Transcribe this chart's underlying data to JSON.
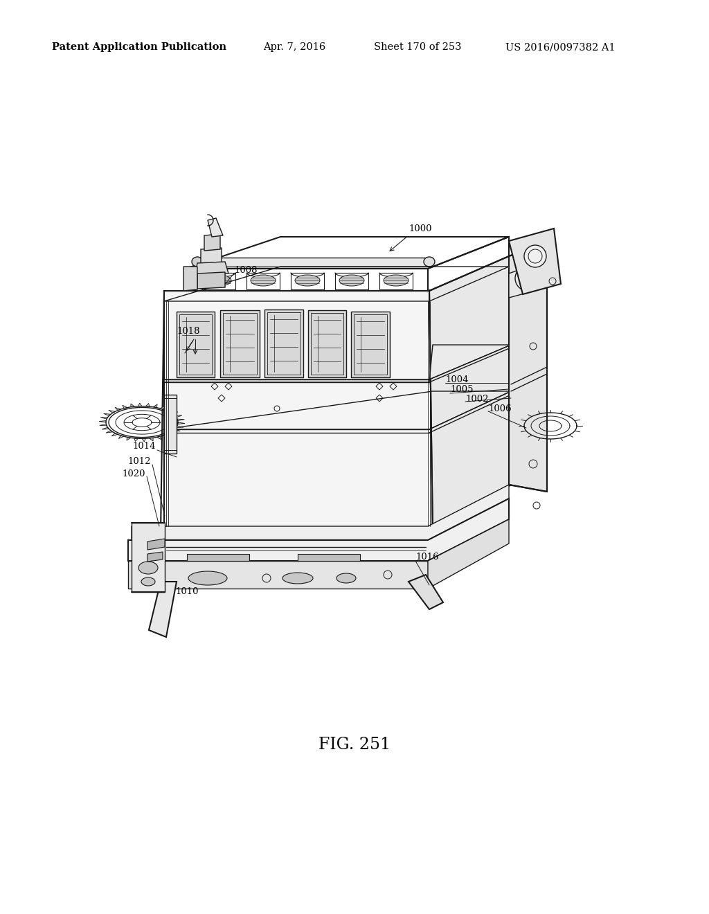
{
  "bg_color": "#ffffff",
  "fig_width": 10.24,
  "fig_height": 13.2,
  "header_left": "Patent Application Publication",
  "header_mid": "Apr. 7, 2016   Sheet 170 of 253   US 2016/0097382 A1",
  "figure_label": "FIG. 251",
  "line_color": "#1a1a1a",
  "text_color": "#000000",
  "header_fontsize": 10.5,
  "label_fontsize": 9.5,
  "figure_label_fontsize": 17
}
